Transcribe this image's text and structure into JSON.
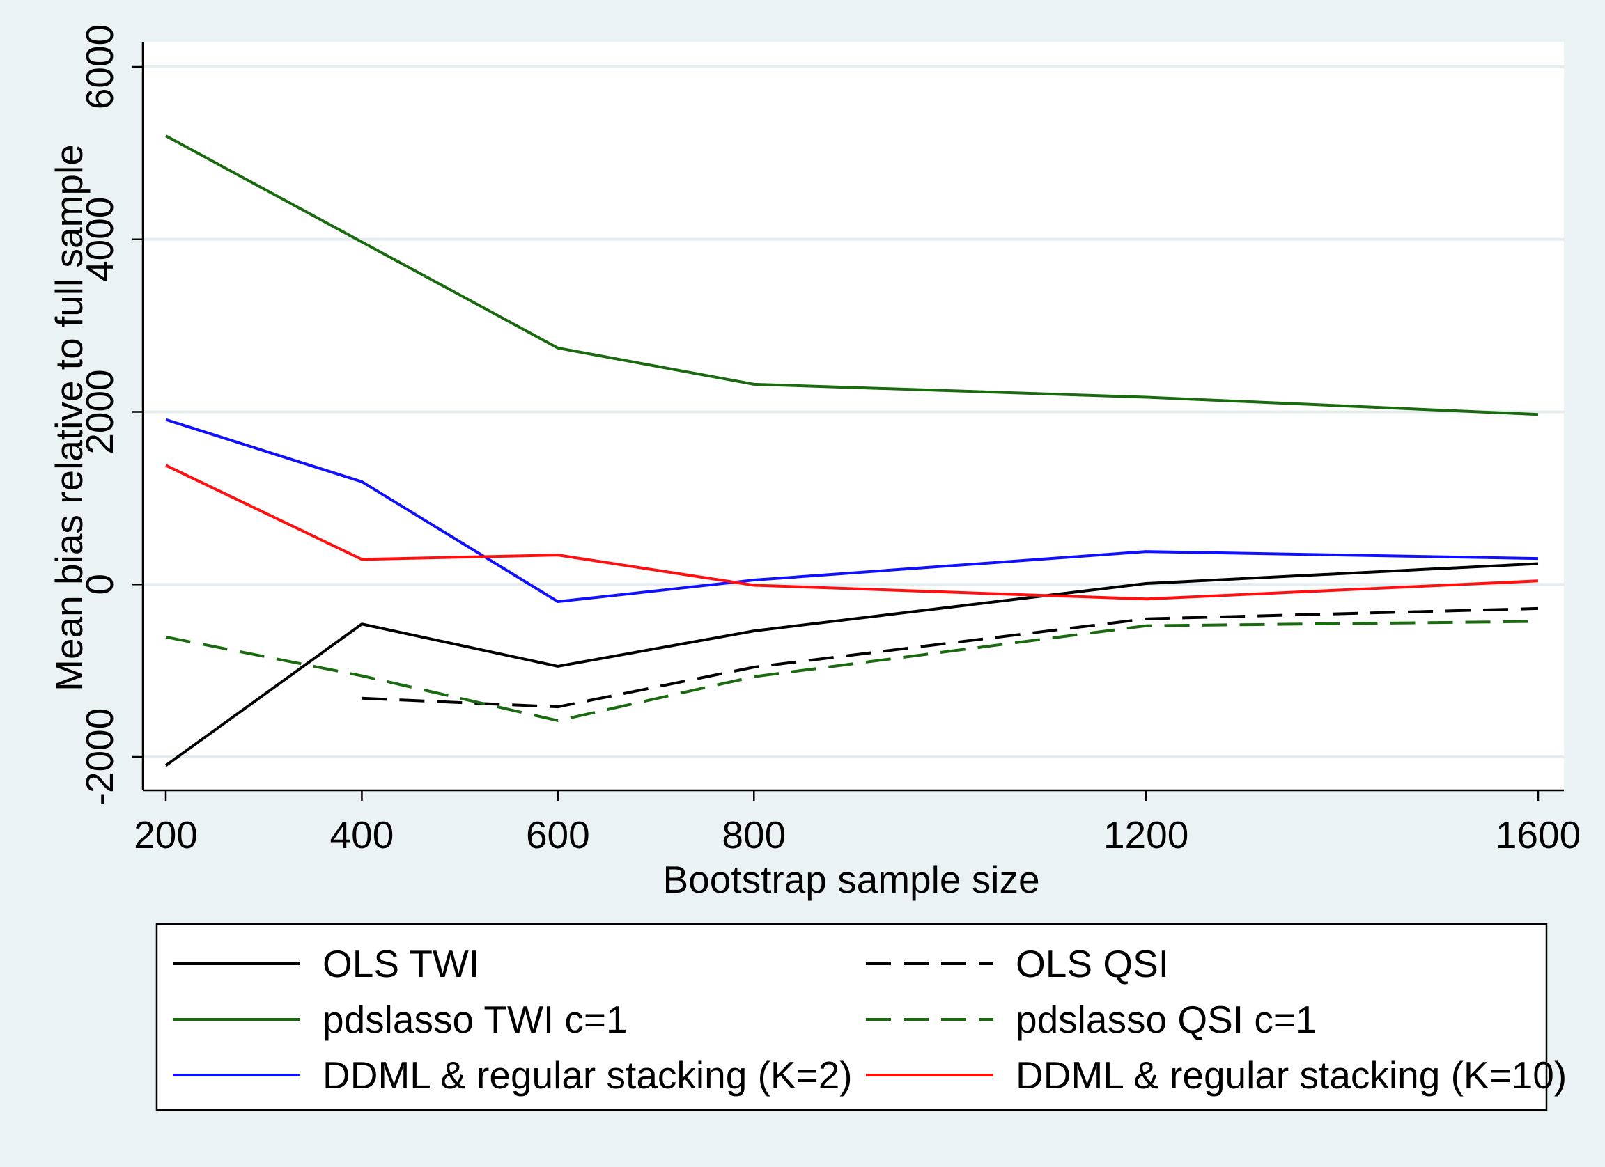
{
  "chart_data": {
    "type": "line",
    "title": "",
    "xlabel": "Bootstrap sample size",
    "ylabel": "Mean bias relative to full sample",
    "x": [
      200,
      400,
      600,
      800,
      1200,
      1600
    ],
    "x_ticks": [
      "200",
      "400",
      "600",
      "800",
      "1200",
      "1600"
    ],
    "y_ticks": [
      "-2000",
      "0",
      "2000",
      "4000",
      "6000"
    ],
    "y_tick_values": [
      -2000,
      0,
      2000,
      4000,
      6000
    ],
    "xlim": [
      200,
      1600
    ],
    "ylim": [
      -2000,
      6000
    ],
    "grid": "horizontal",
    "legend_position": "bottom",
    "series": [
      {
        "name": "OLS TWI",
        "color": "#000000",
        "dash": "solid",
        "values": [
          -2100,
          -460,
          -950,
          -540,
          10,
          240
        ]
      },
      {
        "name": "OLS QSI",
        "color": "#000000",
        "dash": "dashed",
        "values": [
          null,
          -1320,
          -1420,
          -960,
          -400,
          -280
        ]
      },
      {
        "name": "pdslasso TWI c=1",
        "color": "#1a6b10",
        "dash": "solid",
        "values": [
          5200,
          3970,
          2740,
          2320,
          2170,
          1970
        ]
      },
      {
        "name": "pdslasso QSI c=1",
        "color": "#1a6b10",
        "dash": "dashed",
        "values": [
          -610,
          -1060,
          -1580,
          -1070,
          -480,
          -430
        ]
      },
      {
        "name": "DDML & regular stacking (K=2)",
        "color": "#1010ff",
        "dash": "solid",
        "values": [
          1910,
          1190,
          -200,
          50,
          380,
          300
        ]
      },
      {
        "name": "DDML & regular stacking (K=10)",
        "color": "#ff1010",
        "dash": "solid",
        "values": [
          1380,
          290,
          340,
          -10,
          -170,
          40
        ]
      }
    ]
  }
}
